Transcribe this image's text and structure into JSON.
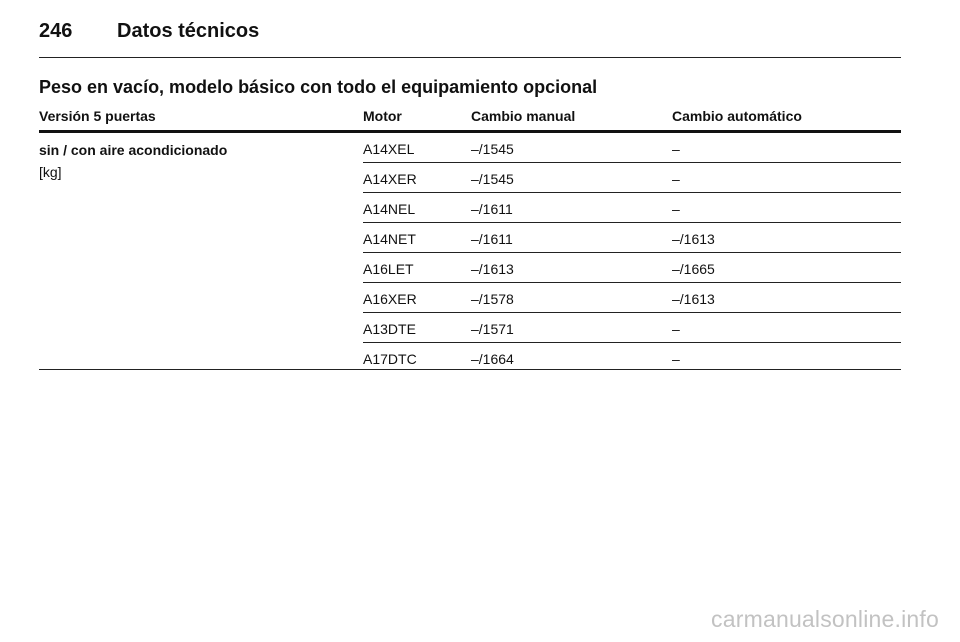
{
  "header": {
    "page_number": "246",
    "chapter_title": "Datos técnicos"
  },
  "section_title": "Peso en vacío, modelo básico con todo el equipamiento opcional",
  "table": {
    "headers": {
      "version": "Versión 5 puertas",
      "motor": "Motor",
      "manual": "Cambio manual",
      "auto": "Cambio automático"
    },
    "row_label": "sin / con aire acondicionado",
    "row_unit": "[kg]",
    "rows": [
      {
        "motor": "A14XEL",
        "manual": "–/1545",
        "auto": "–"
      },
      {
        "motor": "A14XER",
        "manual": "–/1545",
        "auto": "–"
      },
      {
        "motor": "A14NEL",
        "manual": "–/1611",
        "auto": "–"
      },
      {
        "motor": "A14NET",
        "manual": "–/1611",
        "auto": "–/1613"
      },
      {
        "motor": "A16LET",
        "manual": "–/1613",
        "auto": "–/1665"
      },
      {
        "motor": "A16XER",
        "manual": "–/1578",
        "auto": "–/1613"
      },
      {
        "motor": "A13DTE",
        "manual": "–/1571",
        "auto": "–"
      },
      {
        "motor": "A17DTC",
        "manual": "–/1664",
        "auto": "–"
      }
    ]
  },
  "watermark": "carmanualsonline.info"
}
